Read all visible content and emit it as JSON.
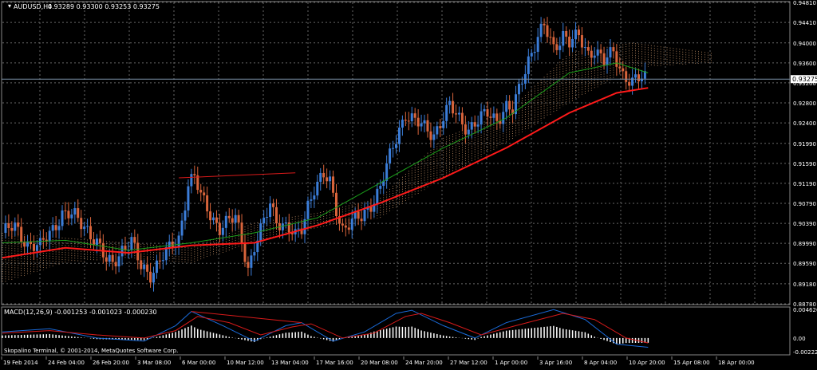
{
  "price_panel": {
    "symbol_label": "AUDUSD,H4",
    "ohlc_label": "0.93289 0.93300 0.93253 0.93275",
    "current_price_label": "0.93275",
    "y_ticks": [
      "0.94810",
      "0.94410",
      "0.94000",
      "0.93600",
      "0.93200",
      "0.92800",
      "0.92400",
      "0.91990",
      "0.91590",
      "0.91190",
      "0.90790",
      "0.90390",
      "0.89990",
      "0.89590",
      "0.89180",
      "0.88780"
    ]
  },
  "macd_panel": {
    "label": "MACD(12,26,9) -0.001253 -0.001023 -0.000230",
    "y_ticks": [
      "0.004626",
      "0.00",
      "-0.00222"
    ]
  },
  "copyright": "Skopalino Terminal, © 2001-2014, MetaQuotes Software Corp.",
  "x_ticks": [
    "19 Feb 2014",
    "24 Feb 04:00",
    "26 Feb 20:00",
    "3 Mar 08:00",
    "6 Mar 00:00",
    "10 Mar 12:00",
    "13 Mar 04:00",
    "17 Mar 16:00",
    "20 Mar 08:00",
    "24 Mar 20:00",
    "27 Mar 12:00",
    "1 Apr 00:00",
    "3 Apr 16:00",
    "8 Apr 04:00",
    "10 Apr 20:00",
    "15 Apr 08:00",
    "18 Apr 00:00"
  ],
  "colors": {
    "background": "#000000",
    "grid": "#666666",
    "bull_candle": "#3b7dd8",
    "bear_candle": "#d8643b",
    "ma_fast": "#1a9e1a",
    "ma_slow": "#ff1a1a",
    "cloud": "#c8956a",
    "macd_line": "#1a6ad8",
    "signal_line": "#d81a1a",
    "histogram": "#ffffff",
    "price_line": "#7a8fa6"
  },
  "chart_data": {
    "type": "candlestick",
    "symbol": "AUDUSD",
    "timeframe": "H4",
    "ylim": [
      0.8878,
      0.9481
    ],
    "current_price": 0.93275,
    "close_path": [
      [
        0,
        0.902
      ],
      [
        4,
        0.903
      ],
      [
        8,
        0.9
      ],
      [
        12,
        0.899
      ],
      [
        16,
        0.903
      ],
      [
        19,
        0.906
      ],
      [
        23,
        0.905
      ],
      [
        27,
        0.903
      ],
      [
        30,
        0.9
      ],
      [
        33,
        0.896
      ],
      [
        35,
        0.896
      ],
      [
        38,
        0.899
      ],
      [
        41,
        0.9
      ],
      [
        44,
        0.895
      ],
      [
        47,
        0.894
      ],
      [
        50,
        0.8965
      ],
      [
        53,
        0.8985
      ],
      [
        56,
        0.901
      ],
      [
        59,
        0.912
      ],
      [
        61,
        0.913
      ],
      [
        63,
        0.909
      ],
      [
        66,
        0.906
      ],
      [
        69,
        0.903
      ],
      [
        72,
        0.904
      ],
      [
        74,
        0.905
      ],
      [
        76,
        0.901
      ],
      [
        78,
        0.895
      ],
      [
        80,
        0.899
      ],
      [
        82,
        0.902
      ],
      [
        85,
        0.908
      ],
      [
        87,
        0.905
      ],
      [
        90,
        0.903
      ],
      [
        93,
        0.901
      ],
      [
        95,
        0.903
      ],
      [
        97,
        0.908
      ],
      [
        99,
        0.911
      ],
      [
        102,
        0.913
      ],
      [
        104,
        0.912
      ],
      [
        106,
        0.907
      ],
      [
        108,
        0.903
      ],
      [
        111,
        0.904
      ],
      [
        114,
        0.905
      ],
      [
        117,
        0.908
      ],
      [
        120,
        0.911
      ],
      [
        123,
        0.917
      ],
      [
        126,
        0.923
      ],
      [
        128,
        0.926
      ],
      [
        131,
        0.924
      ],
      [
        134,
        0.923
      ],
      [
        137,
        0.922
      ],
      [
        140,
        0.925
      ],
      [
        142,
        0.927
      ],
      [
        145,
        0.925
      ],
      [
        148,
        0.923
      ],
      [
        151,
        0.924
      ],
      [
        154,
        0.926
      ],
      [
        157,
        0.925
      ],
      [
        160,
        0.927
      ],
      [
        162,
        0.926
      ],
      [
        165,
        0.933
      ],
      [
        167,
        0.937
      ],
      [
        170,
        0.941
      ],
      [
        172,
        0.943
      ],
      [
        175,
        0.939
      ],
      [
        178,
        0.942
      ],
      [
        180,
        0.94
      ],
      [
        183,
        0.941
      ],
      [
        186,
        0.938
      ],
      [
        188,
        0.939
      ],
      [
        191,
        0.936
      ],
      [
        194,
        0.938
      ],
      [
        197,
        0.934
      ],
      [
        200,
        0.932
      ],
      [
        204,
        0.933
      ]
    ],
    "ma_fast": [
      [
        0,
        0.9
      ],
      [
        20,
        0.9005
      ],
      [
        40,
        0.8985
      ],
      [
        60,
        0.9
      ],
      [
        80,
        0.902
      ],
      [
        100,
        0.905
      ],
      [
        120,
        0.912
      ],
      [
        140,
        0.919
      ],
      [
        160,
        0.925
      ],
      [
        180,
        0.934
      ],
      [
        195,
        0.936
      ],
      [
        205,
        0.934
      ]
    ],
    "ma_slow": [
      [
        0,
        0.897
      ],
      [
        20,
        0.899
      ],
      [
        40,
        0.898
      ],
      [
        60,
        0.8995
      ],
      [
        80,
        0.9
      ],
      [
        100,
        0.9035
      ],
      [
        120,
        0.908
      ],
      [
        140,
        0.913
      ],
      [
        160,
        0.919
      ],
      [
        180,
        0.926
      ],
      [
        195,
        0.93
      ],
      [
        205,
        0.931
      ]
    ],
    "cloud_upper": [
      [
        0,
        0.902
      ],
      [
        20,
        0.901
      ],
      [
        40,
        0.9
      ],
      [
        60,
        0.899
      ],
      [
        80,
        0.904
      ],
      [
        100,
        0.906
      ],
      [
        120,
        0.909
      ],
      [
        140,
        0.921
      ],
      [
        160,
        0.926
      ],
      [
        180,
        0.938
      ],
      [
        200,
        0.94
      ],
      [
        225,
        0.938
      ]
    ],
    "cloud_lower": [
      [
        0,
        0.892
      ],
      [
        20,
        0.896
      ],
      [
        40,
        0.897
      ],
      [
        60,
        0.896
      ],
      [
        80,
        0.9
      ],
      [
        100,
        0.903
      ],
      [
        120,
        0.905
      ],
      [
        140,
        0.913
      ],
      [
        160,
        0.92
      ],
      [
        180,
        0.928
      ],
      [
        200,
        0.935
      ],
      [
        225,
        0.936
      ]
    ],
    "trendline_price": [
      [
        56,
        0.913
      ],
      [
        93,
        0.914
      ]
    ],
    "macd": {
      "ylim": [
        -0.0026,
        0.0049
      ],
      "macd_line": [
        [
          0,
          0.001
        ],
        [
          15,
          0.0015
        ],
        [
          30,
          0.0
        ],
        [
          45,
          -0.0005
        ],
        [
          55,
          0.002
        ],
        [
          60,
          0.0043
        ],
        [
          70,
          0.002
        ],
        [
          80,
          -0.0005
        ],
        [
          90,
          0.002
        ],
        [
          95,
          0.0025
        ],
        [
          105,
          -0.0005
        ],
        [
          115,
          0.001
        ],
        [
          125,
          0.004
        ],
        [
          130,
          0.0045
        ],
        [
          140,
          0.002
        ],
        [
          150,
          0.0
        ],
        [
          160,
          0.0025
        ],
        [
          175,
          0.0046
        ],
        [
          185,
          0.003
        ],
        [
          195,
          -0.001
        ],
        [
          205,
          -0.0015
        ]
      ],
      "signal_line": [
        [
          0,
          0.0008
        ],
        [
          15,
          0.0012
        ],
        [
          30,
          0.0005
        ],
        [
          45,
          0.0
        ],
        [
          55,
          0.0012
        ],
        [
          62,
          0.0035
        ],
        [
          72,
          0.0025
        ],
        [
          82,
          0.0005
        ],
        [
          92,
          0.0018
        ],
        [
          98,
          0.0023
        ],
        [
          108,
          0.0
        ],
        [
          118,
          0.0008
        ],
        [
          128,
          0.0035
        ],
        [
          133,
          0.004
        ],
        [
          142,
          0.0025
        ],
        [
          152,
          0.0005
        ],
        [
          163,
          0.002
        ],
        [
          178,
          0.004
        ],
        [
          188,
          0.003
        ],
        [
          198,
          0.0
        ],
        [
          205,
          -0.0008
        ]
      ],
      "trendline": [
        [
          60,
          0.0043
        ],
        [
          95,
          0.0025
        ]
      ]
    }
  }
}
